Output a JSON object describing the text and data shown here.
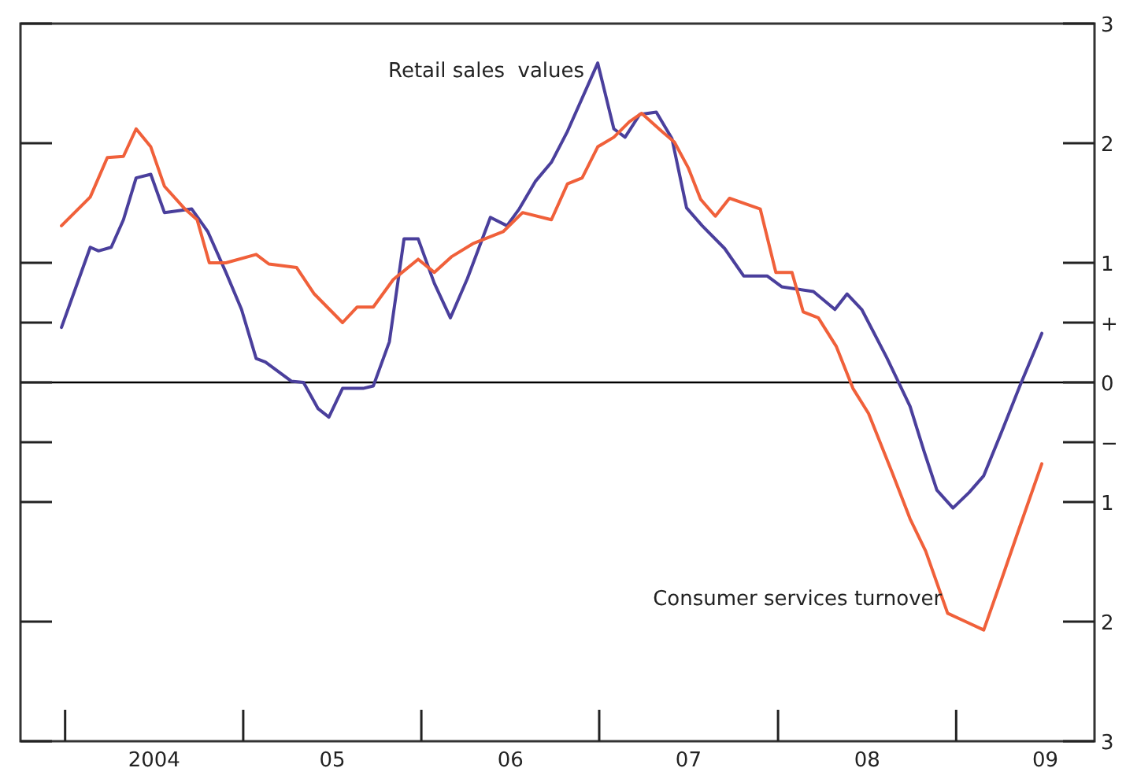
{
  "chart_data": {
    "type": "line",
    "xlim": [
      "2003-10-01",
      "2009-10-10"
    ],
    "ylim": [
      -3,
      3
    ],
    "xticks": [
      {
        "value": "2004-07-01",
        "label": "2004"
      },
      {
        "value": "2005-07-01",
        "label": "05"
      },
      {
        "value": "2006-07-01",
        "label": "06"
      },
      {
        "value": "2007-07-01",
        "label": "07"
      },
      {
        "value": "2008-07-01",
        "label": "08"
      },
      {
        "value": "2009-07-01",
        "label": "09"
      }
    ],
    "yticks": [
      3,
      2,
      1,
      {
        "value": 0.5,
        "label": "+"
      },
      0,
      {
        "value": -0.5,
        "label": "−"
      },
      {
        "value": -1,
        "label": "1"
      },
      {
        "value": -2,
        "label": "2"
      },
      {
        "value": -3,
        "label": "3"
      }
    ],
    "ref_lines": [
      {
        "axis": "y",
        "value": 0,
        "color": "#000000"
      }
    ],
    "grid": false,
    "marker": "none",
    "line_style": "solid",
    "series": [
      {
        "name": "Retail sales  values",
        "color": "#4a3f9c",
        "x": [
          "2003-12-24",
          "2004-02-21",
          "2004-03-09",
          "2004-04-04",
          "2004-04-29",
          "2004-05-25",
          "2004-06-24",
          "2004-07-22",
          "2004-09-16",
          "2004-10-19",
          "2004-11-25",
          "2004-12-27",
          "2005-01-26",
          "2005-02-14",
          "2005-04-08",
          "2005-05-03",
          "2005-06-02",
          "2005-06-24",
          "2005-07-22",
          "2005-09-02",
          "2005-09-23",
          "2005-10-26",
          "2005-11-25",
          "2005-12-24",
          "2006-01-26",
          "2006-02-28",
          "2006-04-04",
          "2006-05-21",
          "2006-06-24",
          "2006-07-19",
          "2006-08-21",
          "2006-09-23",
          "2006-10-26",
          "2006-12-27",
          "2007-01-29",
          "2007-02-21",
          "2007-03-23",
          "2007-04-26",
          "2007-05-28",
          "2007-06-27",
          "2007-07-29",
          "2007-09-13",
          "2007-10-22",
          "2007-12-09",
          "2008-01-08",
          "2008-03-13",
          "2008-04-26",
          "2008-05-21",
          "2008-06-20",
          "2008-08-10",
          "2008-09-27",
          "2008-10-26",
          "2008-11-21",
          "2008-12-24",
          "2009-01-26",
          "2009-02-25",
          "2009-04-04",
          "2009-05-10",
          "2009-06-24"
        ],
        "values": [
          0.46,
          1.13,
          1.1,
          1.13,
          1.36,
          1.71,
          1.74,
          1.42,
          1.45,
          1.26,
          0.92,
          0.61,
          0.2,
          0.17,
          0.01,
          0,
          -0.22,
          -0.29,
          -0.05,
          -0.05,
          -0.03,
          0.34,
          1.2,
          1.2,
          0.83,
          0.54,
          0.87,
          1.38,
          1.31,
          1.45,
          1.68,
          1.84,
          2.1,
          2.67,
          2.12,
          2.05,
          2.24,
          2.26,
          2.04,
          1.46,
          1.31,
          1.12,
          0.89,
          0.89,
          0.8,
          0.76,
          0.61,
          0.74,
          0.61,
          0.21,
          -0.2,
          -0.58,
          -0.9,
          -1.05,
          -0.92,
          -0.78,
          -0.4,
          -0.03,
          0.41
        ]
      },
      {
        "name": "Consumer services turnover",
        "color": "#f0603a",
        "x": [
          "2003-12-24",
          "2004-02-21",
          "2004-03-27",
          "2004-04-29",
          "2004-05-25",
          "2004-06-24",
          "2004-07-22",
          "2004-09-02",
          "2004-09-27",
          "2004-10-22",
          "2004-11-25",
          "2005-01-26",
          "2005-02-21",
          "2005-04-19",
          "2005-05-25",
          "2005-07-22",
          "2005-08-21",
          "2005-09-23",
          "2005-11-03",
          "2005-12-24",
          "2006-01-26",
          "2006-03-02",
          "2006-04-15",
          "2006-06-16",
          "2006-07-26",
          "2006-09-23",
          "2006-10-26",
          "2006-11-25",
          "2006-12-27",
          "2007-01-29",
          "2007-03-02",
          "2007-03-27",
          "2007-05-07",
          "2007-06-02",
          "2007-07-01",
          "2007-07-26",
          "2007-08-25",
          "2007-09-23",
          "2007-11-25",
          "2007-12-27",
          "2008-01-29",
          "2008-02-21",
          "2008-03-23",
          "2008-04-29",
          "2008-06-02",
          "2008-07-04",
          "2008-08-21",
          "2008-09-27",
          "2008-10-29",
          "2008-12-13",
          "2009-01-19",
          "2009-02-25",
          "2009-04-04",
          "2009-05-07",
          "2009-06-24"
        ],
        "values": [
          1.31,
          1.55,
          1.88,
          1.89,
          2.12,
          1.97,
          1.64,
          1.45,
          1.36,
          1.0,
          1.0,
          1.07,
          0.99,
          0.96,
          0.74,
          0.5,
          0.63,
          0.63,
          0.86,
          1.03,
          0.92,
          1.05,
          1.16,
          1.26,
          1.42,
          1.36,
          1.66,
          1.71,
          1.97,
          2.05,
          2.18,
          2.25,
          2.1,
          2.01,
          1.79,
          1.53,
          1.39,
          1.54,
          1.45,
          0.92,
          0.92,
          0.59,
          0.54,
          0.3,
          -0.05,
          -0.26,
          -0.75,
          -1.14,
          -1.41,
          -1.93,
          -2.0,
          -2.07,
          -1.63,
          -1.24,
          -0.68
        ]
      }
    ]
  }
}
